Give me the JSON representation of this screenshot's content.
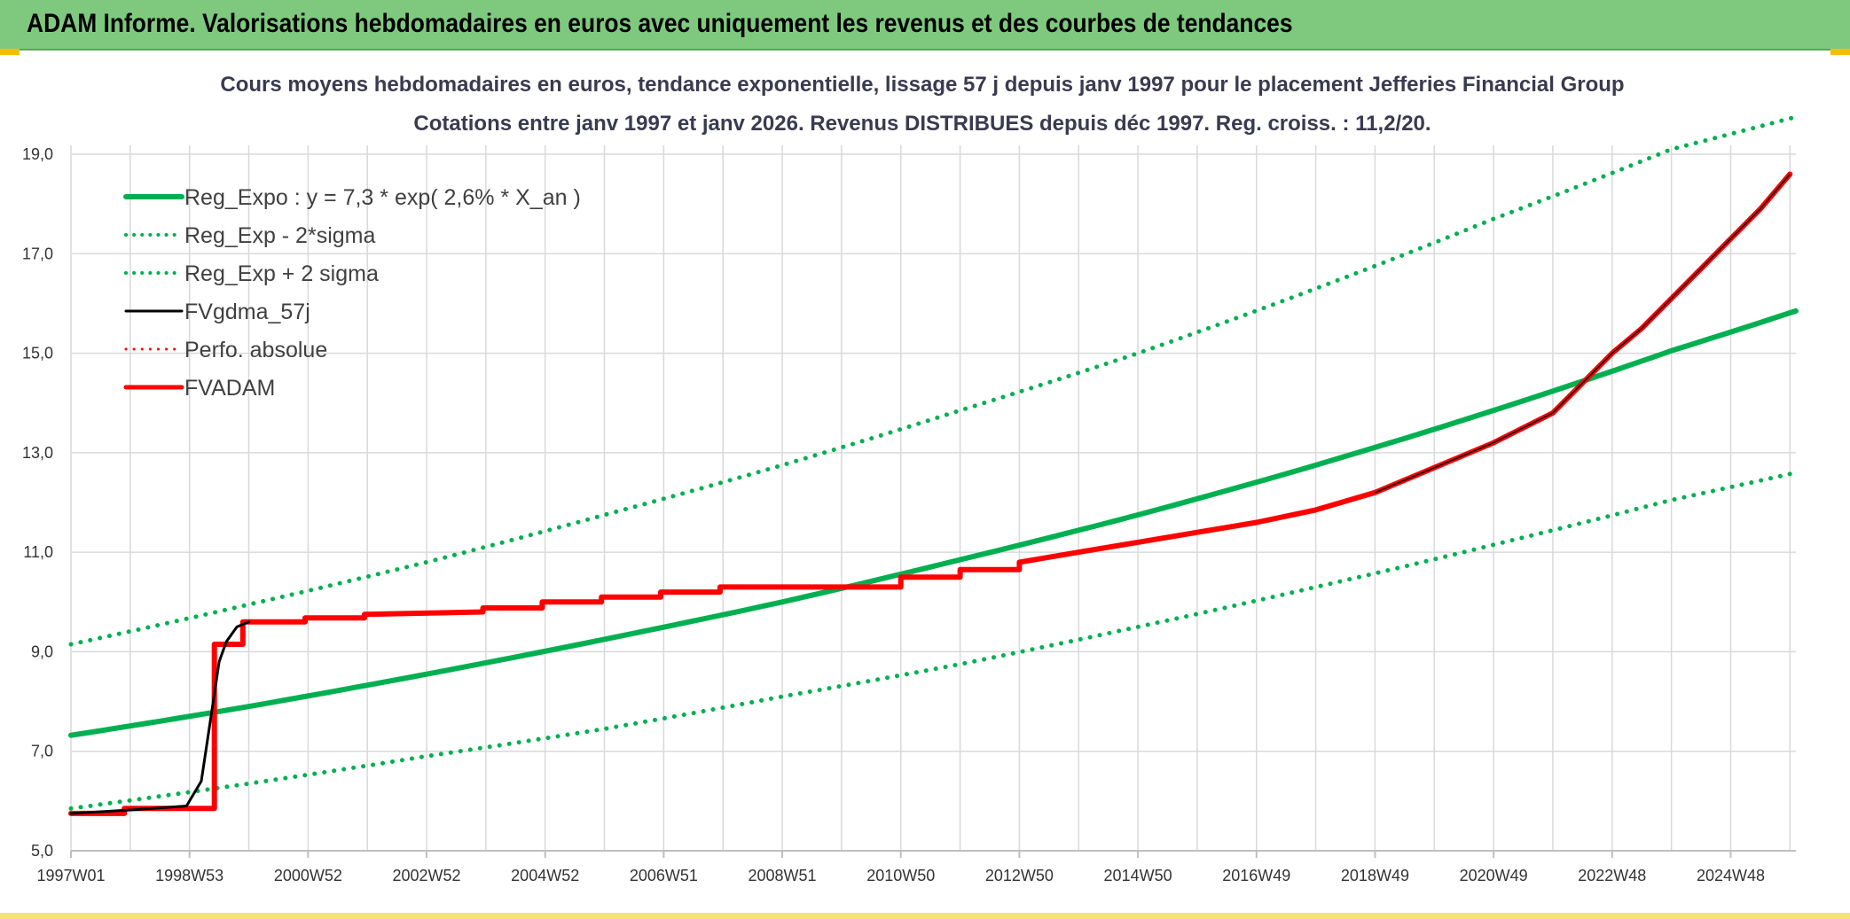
{
  "header": {
    "title": "ADAM Informe. Valorisations hebdomadaires en euros avec uniquement les revenus et des courbes de tendances"
  },
  "colors": {
    "header_bg": "#7fc97f",
    "green": "#00b050",
    "black": "#000000",
    "red": "#ff0000",
    "grid": "#d9d9d9"
  },
  "chart_data": {
    "type": "line",
    "title_lines": [
      "Cours moyens hebdomadaires en euros, tendance exponentielle, lissage 57 j depuis janv 1997 pour le placement Jefferies Financial Group",
      "Cotations entre janv 1997 et janv 2026. Revenus DISTRIBUES depuis déc 1997. Reg. croiss. : 11,2/20."
    ],
    "ylim": [
      5.0,
      19.0
    ],
    "yticks": [
      "5,0",
      "7,0",
      "9,0",
      "11,0",
      "13,0",
      "15,0",
      "17,0",
      "19,0"
    ],
    "ytick_values": [
      5,
      7,
      9,
      11,
      13,
      15,
      17,
      19
    ],
    "xlim": [
      1997.0,
      2026.1
    ],
    "xticks": [
      "1997W01",
      "1998W53",
      "2000W52",
      "2002W52",
      "2004W52",
      "2006W51",
      "2008W51",
      "2010W50",
      "2012W50",
      "2014W50",
      "2016W49",
      "2018W49",
      "2020W49",
      "2022W48",
      "2024W48"
    ],
    "xtick_values": [
      1997.0,
      1999.0,
      2001.0,
      2003.0,
      2005.0,
      2007.0,
      2009.0,
      2011.0,
      2013.0,
      2015.0,
      2017.0,
      2019.0,
      2021.0,
      2023.0,
      2025.0
    ],
    "grid": true,
    "legend": [
      {
        "label": "Reg_Expo : y = 7,3 * exp( 2,6% *  X_an )",
        "color": "#00b050",
        "style": "solid",
        "width": 6
      },
      {
        "label": "Reg_Exp - 2*sigma",
        "color": "#00b050",
        "style": "dotted",
        "width": 4
      },
      {
        "label": "Reg_Exp + 2 sigma",
        "color": "#00b050",
        "style": "dotted",
        "width": 4
      },
      {
        "label": "FVgdma_57j",
        "color": "#000000",
        "style": "solid",
        "width": 3
      },
      {
        "label": "Perfo. absolue",
        "color": "#ff0000",
        "style": "dotted",
        "width": 3
      },
      {
        "label": "FVADAM",
        "color": "#ff0000",
        "style": "solid",
        "width": 5
      }
    ],
    "series": [
      {
        "name": "Reg_Expo",
        "style": "solid",
        "x": [
          1997.0,
          2000.0,
          2003.0,
          2006.0,
          2009.0,
          2012.0,
          2015.0,
          2018.0,
          2021.0,
          2024.0,
          2026.1
        ],
        "values": [
          7.32,
          7.9,
          8.55,
          9.25,
          10.0,
          10.85,
          11.75,
          12.75,
          13.85,
          15.05,
          15.85
        ]
      },
      {
        "name": "Reg_Exp - 2*sigma",
        "style": "dotted",
        "x": [
          1997.0,
          2000.0,
          2003.0,
          2006.0,
          2009.0,
          2012.0,
          2015.0,
          2018.0,
          2021.0,
          2024.0,
          2026.1
        ],
        "values": [
          5.85,
          6.35,
          6.9,
          7.45,
          8.1,
          8.75,
          9.5,
          10.3,
          11.15,
          12.05,
          12.6
        ]
      },
      {
        "name": "Reg_Exp + 2 sigma",
        "style": "dotted",
        "x": [
          1997.0,
          2000.0,
          2003.0,
          2006.0,
          2009.0,
          2012.0,
          2015.0,
          2018.0,
          2021.0,
          2024.0,
          2026.1
        ],
        "values": [
          9.15,
          9.95,
          10.8,
          11.75,
          12.75,
          13.85,
          15.0,
          16.3,
          17.7,
          19.1,
          19.75
        ]
      },
      {
        "name": "FVgdma_57j",
        "style": "solid",
        "x": [
          1997.0,
          1998.0,
          1998.95,
          1999.2,
          1999.35,
          1999.5,
          1999.62,
          1999.8,
          2000.0
        ],
        "values": [
          5.75,
          5.82,
          5.9,
          6.4,
          7.6,
          8.8,
          9.2,
          9.5,
          9.6
        ]
      },
      {
        "name": "FVADAM",
        "style": "solid",
        "x": [
          1997.0,
          1997.9,
          1997.9,
          1999.42,
          1999.42,
          1999.9,
          1999.9,
          2000.95,
          2000.95,
          2001.95,
          2001.95,
          2003.95,
          2003.95,
          2004.95,
          2004.95,
          2005.95,
          2005.95,
          2006.95,
          2006.95,
          2007.95,
          2007.95,
          2011.0,
          2011.0,
          2012.0,
          2012.0,
          2013.0,
          2013.0,
          2014.0,
          2015.0,
          2016.0,
          2017.0,
          2018.0,
          2019.0,
          2020.0,
          2021.0,
          2022.0,
          2022.5,
          2023.0,
          2023.5,
          2024.0,
          2024.5,
          2025.0,
          2025.5,
          2026.0
        ],
        "values": [
          5.75,
          5.75,
          5.85,
          5.85,
          9.15,
          9.15,
          9.6,
          9.6,
          9.68,
          9.68,
          9.75,
          9.8,
          9.88,
          9.88,
          10.0,
          10.0,
          10.1,
          10.1,
          10.2,
          10.2,
          10.3,
          10.3,
          10.5,
          10.5,
          10.65,
          10.65,
          10.8,
          11.0,
          11.2,
          11.4,
          11.6,
          11.85,
          12.2,
          12.7,
          13.2,
          13.8,
          14.4,
          15.0,
          15.5,
          16.1,
          16.7,
          17.3,
          17.9,
          18.6
        ]
      }
    ]
  }
}
